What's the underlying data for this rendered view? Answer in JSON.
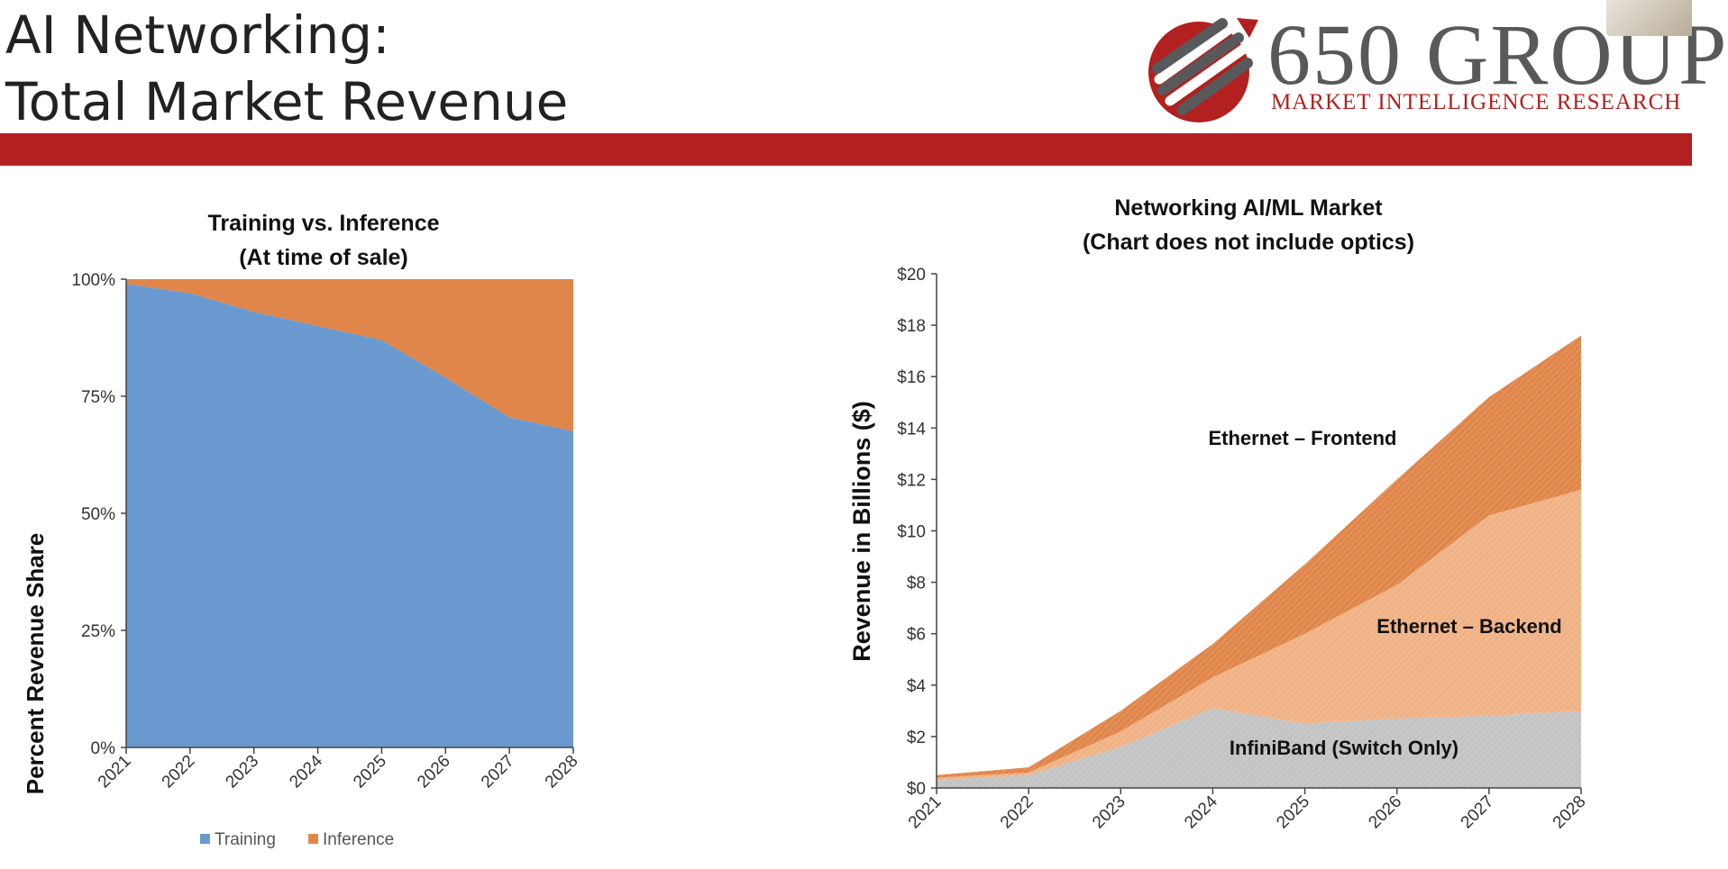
{
  "slide": {
    "title_line1": "AI Networking:",
    "title_line2": "Total Market Revenue"
  },
  "logo": {
    "name": "650 GROUP",
    "tagline": "MARKET INTELLIGENCE RESEARCH",
    "colors": {
      "red": "#b2201f",
      "gray": "#58595b"
    }
  },
  "colors": {
    "band": "#b2201f"
  },
  "chart_data": [
    {
      "type": "area",
      "stacked": true,
      "percent": true,
      "title": "Training vs. Inference",
      "subtitle": "(At time of sale)",
      "ylabel": "Percent Revenue Share",
      "xlabel": "",
      "x": [
        "2021",
        "2022",
        "2023",
        "2024",
        "2025",
        "2026",
        "2027",
        "2028"
      ],
      "ylim": [
        0,
        100
      ],
      "yticks": [
        "0%",
        "25%",
        "50%",
        "75%",
        "100%"
      ],
      "series": [
        {
          "name": "Training",
          "color": "#6a99d0",
          "values": [
            99,
            97,
            93,
            90,
            87,
            79,
            70.5,
            67.5
          ]
        },
        {
          "name": "Inference",
          "color": "#e0864a",
          "values": [
            1,
            3,
            7,
            10,
            13,
            21,
            29.5,
            32.5
          ]
        }
      ],
      "legend": "bottom",
      "grid": false
    },
    {
      "type": "area",
      "stacked": true,
      "title": "Networking AI/ML Market",
      "subtitle": "(Chart does not include optics)",
      "ylabel": "Revenue in Billions ($)",
      "xlabel": "",
      "x": [
        "2021",
        "2022",
        "2023",
        "2024",
        "2025",
        "2026",
        "2027",
        "2028"
      ],
      "ylim": [
        0,
        20
      ],
      "yticks": [
        "$0",
        "$2",
        "$4",
        "$6",
        "$8",
        "$10",
        "$12",
        "$14",
        "$16",
        "$18",
        "$20"
      ],
      "series": [
        {
          "name": "InfiniBand (Switch Only)",
          "color": "#c3c3c3",
          "values": [
            0.3,
            0.5,
            1.6,
            3.1,
            2.5,
            2.7,
            2.8,
            3.0
          ]
        },
        {
          "name": "Ethernet – Backend",
          "color": "#f0b285",
          "values": [
            0.1,
            0.1,
            0.6,
            1.2,
            3.5,
            5.2,
            7.8,
            8.6
          ]
        },
        {
          "name": "Ethernet – Frontend",
          "color": "#e0864a",
          "values": [
            0.1,
            0.2,
            0.8,
            1.3,
            2.7,
            4.1,
            4.6,
            6.0
          ]
        }
      ],
      "legend": "inline labels",
      "grid": false
    }
  ]
}
